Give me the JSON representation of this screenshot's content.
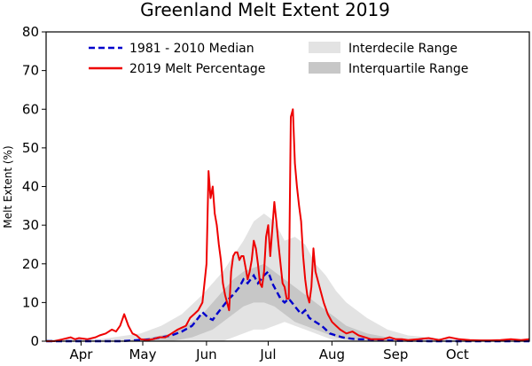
{
  "chart_data": {
    "type": "line",
    "title": "Greenland Melt Extent 2019",
    "xlabel": "",
    "ylabel": "Melt Extent (%)",
    "ylim": [
      0,
      80
    ],
    "yticks": [
      0,
      10,
      20,
      30,
      40,
      50,
      60,
      70,
      80
    ],
    "xlim": [
      74,
      309
    ],
    "month_ticks": [
      {
        "label": "Apr",
        "day": 91
      },
      {
        "label": "May",
        "day": 121
      },
      {
        "label": "Jun",
        "day": 152
      },
      {
        "label": "Jul",
        "day": 182
      },
      {
        "label": "Aug",
        "day": 213
      },
      {
        "label": "Sep",
        "day": 244
      },
      {
        "label": "Oct",
        "day": 274
      }
    ],
    "grid": false,
    "legend_placement": "top",
    "legend": {
      "median_label": "1981 - 2010 Median",
      "melt_label": "2019 Melt Percentage",
      "interdecile_label": "Interdecile Range",
      "interquartile_label": "Interquartile Range"
    },
    "colors": {
      "median": "#0000cc",
      "melt": "#ee0000",
      "interdecile": "#e3e3e3",
      "interquartile": "#c7c7c7"
    },
    "interdecile_band": {
      "x": [
        74,
        100,
        120,
        130,
        140,
        150,
        160,
        165,
        170,
        175,
        180,
        185,
        190,
        195,
        200,
        205,
        210,
        215,
        220,
        230,
        240,
        250,
        260,
        270,
        280,
        290,
        300,
        309
      ],
      "lower": [
        0,
        0,
        0,
        0,
        0,
        0,
        0,
        1,
        2,
        3,
        3,
        4,
        5,
        4,
        3,
        2,
        1,
        0,
        0,
        0,
        0,
        0,
        0,
        0,
        0,
        0,
        0,
        0
      ],
      "upper": [
        0.5,
        0.5,
        2,
        4,
        7,
        12,
        18,
        22,
        26,
        31,
        33,
        31,
        26,
        27,
        25,
        20,
        17,
        13,
        10,
        6,
        3,
        1.5,
        1,
        0.5,
        0.5,
        0.5,
        0.5,
        0.5
      ]
    },
    "interquartile_band": {
      "x": [
        74,
        110,
        125,
        135,
        145,
        150,
        155,
        160,
        165,
        170,
        175,
        180,
        185,
        190,
        195,
        200,
        205,
        210,
        215,
        220,
        230,
        240,
        250,
        260,
        280,
        309
      ],
      "lower": [
        0,
        0,
        0,
        0,
        1,
        2,
        3,
        5,
        7,
        9,
        10,
        10,
        9,
        7,
        5,
        4,
        3,
        2,
        1,
        0.5,
        0,
        0,
        0,
        0,
        0,
        0
      ],
      "upper": [
        0,
        0,
        1,
        2,
        5,
        7,
        10,
        13,
        16,
        18,
        19,
        20,
        18,
        16,
        14,
        12,
        10,
        8,
        6,
        4,
        2,
        1,
        0.5,
        0.2,
        0,
        0
      ]
    },
    "series": [
      {
        "name": "1981 - 2010 Median",
        "x": [
          74,
          90,
          100,
          110,
          120,
          125,
          130,
          135,
          140,
          145,
          148,
          150,
          153,
          155,
          157,
          160,
          163,
          165,
          168,
          170,
          172,
          175,
          177,
          180,
          182,
          184,
          186,
          188,
          190,
          192,
          195,
          198,
          200,
          202,
          205,
          208,
          210,
          212,
          215,
          218,
          220,
          225,
          230,
          235,
          240,
          245,
          250,
          260,
          270,
          280,
          290,
          309
        ],
        "y": [
          0,
          0,
          0,
          0,
          0.3,
          0.5,
          1,
          1.5,
          2.5,
          4,
          6,
          7.5,
          6,
          5.5,
          7,
          9,
          11,
          12,
          14,
          16,
          15,
          17,
          15,
          17,
          18,
          15,
          13,
          11,
          10,
          11,
          9,
          7,
          8,
          6,
          5,
          4,
          3,
          2,
          1.5,
          1,
          0.8,
          0.5,
          0.5,
          0.3,
          0.2,
          0.1,
          0.1,
          0,
          0,
          0,
          0,
          0
        ]
      },
      {
        "name": "2019 Melt Percentage",
        "x": [
          74,
          78,
          82,
          86,
          88,
          90,
          94,
          98,
          100,
          103,
          106,
          108,
          110,
          112,
          114,
          116,
          118,
          120,
          123,
          126,
          129,
          132,
          135,
          138,
          140,
          142,
          144,
          146,
          148,
          150,
          151,
          152,
          153,
          154,
          155,
          156,
          157,
          158,
          159,
          160,
          161,
          162,
          163,
          164,
          165,
          166,
          167,
          168,
          169,
          170,
          171,
          172,
          173,
          174,
          175,
          176,
          177,
          178,
          179,
          180,
          181,
          182,
          183,
          184,
          185,
          186,
          187,
          188,
          189,
          190,
          191,
          192,
          193,
          194,
          195,
          196,
          197,
          198,
          199,
          200,
          201,
          202,
          203,
          204,
          205,
          207,
          209,
          211,
          213,
          215,
          217,
          220,
          223,
          226,
          229,
          232,
          235,
          238,
          241,
          244,
          247,
          250,
          255,
          260,
          265,
          270,
          275,
          280,
          285,
          290,
          295,
          300,
          305,
          309
        ],
        "y": [
          0,
          0,
          0.5,
          1,
          0.5,
          0.8,
          0.5,
          1,
          1.5,
          2,
          3,
          2.5,
          4,
          7,
          4,
          2,
          1.5,
          0.5,
          0.3,
          0.5,
          1,
          1,
          2,
          3,
          3.5,
          4,
          6,
          7,
          8,
          10,
          15,
          20,
          44,
          37,
          40,
          33,
          30,
          25,
          21,
          15,
          12,
          10,
          8,
          18,
          22,
          23,
          23,
          21,
          22,
          22,
          19,
          16,
          18,
          21,
          26,
          24,
          20,
          15,
          14,
          18,
          27,
          30,
          22,
          29,
          36,
          31,
          25,
          20,
          15,
          14,
          11,
          11,
          58,
          60,
          46,
          40,
          35,
          31,
          22,
          16,
          12,
          10,
          14,
          24,
          18,
          14,
          10,
          7,
          5,
          4,
          3,
          2,
          2.5,
          1.5,
          1,
          0.5,
          0.5,
          0.5,
          1,
          0.5,
          0.5,
          0.3,
          0.5,
          0.8,
          0.3,
          1,
          0.5,
          0.3,
          0.2,
          0.2,
          0.3,
          0.5,
          0.3,
          0.5
        ]
      }
    ]
  }
}
